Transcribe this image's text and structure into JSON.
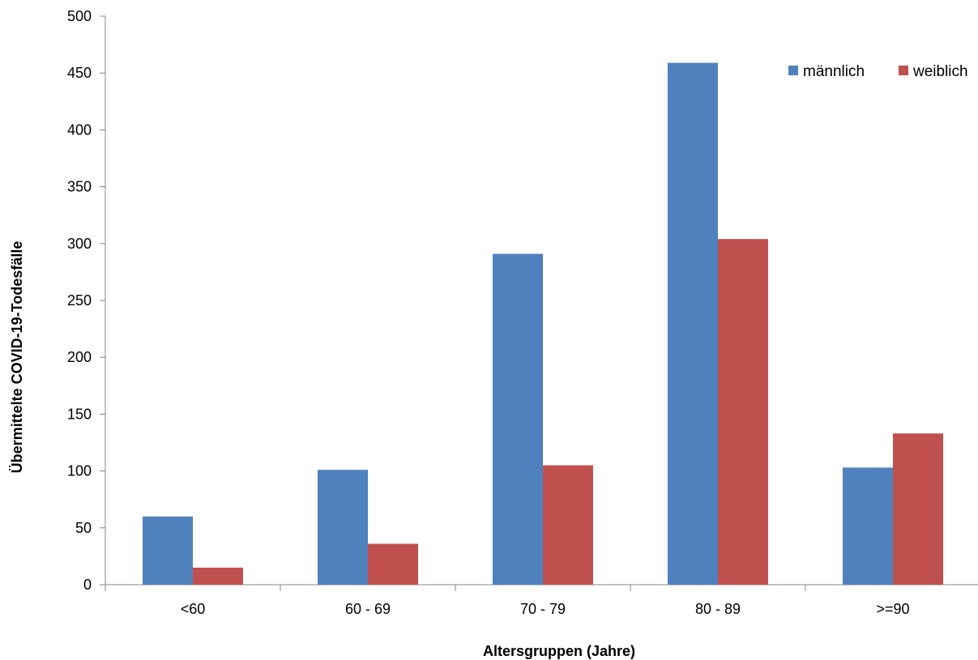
{
  "chart_data": {
    "type": "bar",
    "categories": [
      "<60",
      "60 - 69",
      "70 - 79",
      "80 - 89",
      ">=90"
    ],
    "series": [
      {
        "name": "männlich",
        "values": [
          60,
          101,
          291,
          459,
          103
        ],
        "color": "#4F81BD"
      },
      {
        "name": "weiblich",
        "values": [
          15,
          36,
          105,
          304,
          133
        ],
        "color": "#C0504D"
      }
    ],
    "title": "",
    "xlabel": "Altersgruppen (Jahre)",
    "ylabel": "Übermittelte COVID-19-Todesfälle",
    "ylim": [
      0,
      500
    ],
    "yticks": [
      0,
      50,
      100,
      150,
      200,
      250,
      300,
      350,
      400,
      450,
      500
    ],
    "grid": false,
    "legend_position": "top-right",
    "axis_color": "#868686"
  }
}
